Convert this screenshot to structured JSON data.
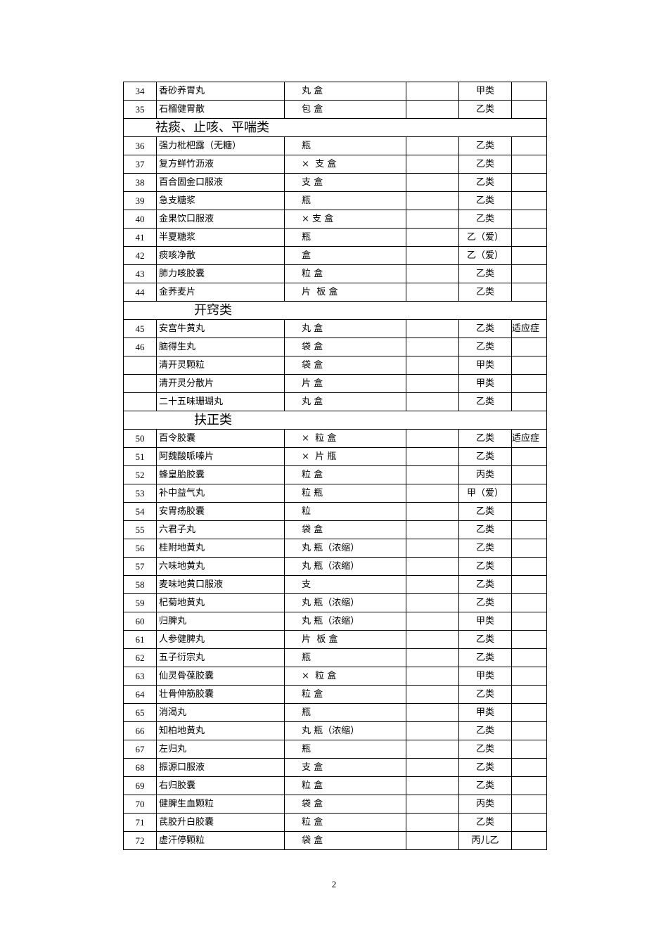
{
  "rows": [
    {
      "type": "item",
      "num": "34",
      "name": "香砂养胃丸",
      "spec": "丸 盒",
      "cat": "甲类",
      "note": ""
    },
    {
      "type": "item",
      "num": "35",
      "name": "石榴健胃散",
      "spec": "包 盒",
      "cat": "乙类",
      "note": ""
    },
    {
      "type": "section",
      "title": "祛痰、止咳、平喘类"
    },
    {
      "type": "item",
      "num": "36",
      "name": "强力枇杷露（无糖）",
      "spec": "瓶",
      "cat": "乙类",
      "note": ""
    },
    {
      "type": "item",
      "num": "37",
      "name": "复方鲜竹沥液",
      "spec": "×  支 盒",
      "cat": "乙类",
      "note": ""
    },
    {
      "type": "item",
      "num": "38",
      "name": "百合固金口服液",
      "spec": "支 盒",
      "cat": "乙类",
      "note": ""
    },
    {
      "type": "item",
      "num": "39",
      "name": "急支糖浆",
      "spec": "瓶",
      "cat": "乙类",
      "note": ""
    },
    {
      "type": "item",
      "num": "40",
      "name": "金果饮口服液",
      "spec": "× 支 盒",
      "cat": "乙类",
      "note": ""
    },
    {
      "type": "item",
      "num": "41",
      "name": "半夏糖浆",
      "spec": "瓶",
      "cat": "乙（爱）",
      "note": ""
    },
    {
      "type": "item",
      "num": "42",
      "name": "痰咳净散",
      "spec": "盒",
      "cat": "乙（爱）",
      "note": ""
    },
    {
      "type": "item",
      "num": "43",
      "name": "肺力咳胶囊",
      "spec": "粒 盒",
      "cat": "乙类",
      "note": ""
    },
    {
      "type": "item",
      "num": "44",
      "name": "金荞麦片",
      "spec": "片  板 盒",
      "cat": "乙类",
      "note": ""
    },
    {
      "type": "section",
      "title": "开窍类"
    },
    {
      "type": "item",
      "num": "45",
      "name": "安宫牛黄丸",
      "spec": "丸 盒",
      "cat": "乙类",
      "note": "适应症"
    },
    {
      "type": "item",
      "num": "46",
      "name": "脑得生丸",
      "spec": "袋 盒",
      "cat": "乙类",
      "note": ""
    },
    {
      "type": "item",
      "num": "",
      "name": "清开灵颗粒",
      "spec": "袋 盒",
      "cat": "甲类",
      "note": ""
    },
    {
      "type": "item",
      "num": "",
      "name": "清开灵分散片",
      "spec": "片 盒",
      "cat": "甲类",
      "note": ""
    },
    {
      "type": "item",
      "num": "",
      "name": "二十五味珊瑚丸",
      "spec": "丸 盒",
      "cat": "乙类",
      "note": ""
    },
    {
      "type": "section",
      "title": "扶正类"
    },
    {
      "type": "item",
      "num": "50",
      "name": "百令胶囊",
      "spec": "×  粒 盒",
      "cat": "乙类",
      "note": "适应症"
    },
    {
      "type": "item",
      "num": "51",
      "name": "阿魏酸哌嗪片",
      "spec": "×  片 瓶",
      "cat": "乙类",
      "note": ""
    },
    {
      "type": "item",
      "num": "52",
      "name": "蜂皇胎胶囊",
      "spec": "粒 盒",
      "cat": "丙类",
      "note": ""
    },
    {
      "type": "item",
      "num": "53",
      "name": "补中益气丸",
      "spec": "粒 瓶",
      "cat": "甲（爱）",
      "note": ""
    },
    {
      "type": "item",
      "num": "54",
      "name": "安胃疡胶囊",
      "spec": "粒",
      "cat": "乙类",
      "note": ""
    },
    {
      "type": "item",
      "num": "55",
      "name": "六君子丸",
      "spec": "袋 盒",
      "cat": "乙类",
      "note": ""
    },
    {
      "type": "item",
      "num": "56",
      "name": "桂附地黄丸",
      "spec": "丸 瓶（浓缩）",
      "cat": "乙类",
      "note": ""
    },
    {
      "type": "item",
      "num": "57",
      "name": "六味地黄丸",
      "spec": "丸 瓶（浓缩）",
      "cat": "乙类",
      "note": ""
    },
    {
      "type": "item",
      "num": "58",
      "name": "麦味地黄口服液",
      "spec": "支",
      "cat": "乙类",
      "note": ""
    },
    {
      "type": "item",
      "num": "59",
      "name": "杞菊地黄丸",
      "spec": "丸 瓶（浓缩）",
      "cat": "乙类",
      "note": ""
    },
    {
      "type": "item",
      "num": "60",
      "name": "归脾丸",
      "spec": "丸 瓶（浓缩）",
      "cat": "甲类",
      "note": ""
    },
    {
      "type": "item",
      "num": "61",
      "name": "人参健脾丸",
      "spec": "片  板 盒",
      "cat": "乙类",
      "note": ""
    },
    {
      "type": "item",
      "num": "62",
      "name": "五子衍宗丸",
      "spec": "瓶",
      "cat": "乙类",
      "note": ""
    },
    {
      "type": "item",
      "num": "63",
      "name": "仙灵骨葆胶囊",
      "spec": "×  粒 盒",
      "cat": "甲类",
      "note": ""
    },
    {
      "type": "item",
      "num": "64",
      "name": "壮骨伸筋胶囊",
      "spec": "粒 盒",
      "cat": "乙类",
      "note": ""
    },
    {
      "type": "item",
      "num": "65",
      "name": "消渴丸",
      "spec": "瓶",
      "cat": "甲类",
      "note": ""
    },
    {
      "type": "item",
      "num": "66",
      "name": "知柏地黄丸",
      "spec": "丸 瓶（浓缩）",
      "cat": "乙类",
      "note": ""
    },
    {
      "type": "item",
      "num": "67",
      "name": "左归丸",
      "spec": "瓶",
      "cat": "乙类",
      "note": ""
    },
    {
      "type": "item",
      "num": "68",
      "name": "振源口服液",
      "spec": "支 盒",
      "cat": "乙类",
      "note": ""
    },
    {
      "type": "item",
      "num": "69",
      "name": "右归胶囊",
      "spec": "粒 盒",
      "cat": "乙类",
      "note": ""
    },
    {
      "type": "item",
      "num": "70",
      "name": "健脾生血颗粒",
      "spec": "袋 盒",
      "cat": "丙类",
      "note": ""
    },
    {
      "type": "item",
      "num": "71",
      "name": "芪胶升白胶囊",
      "spec": "粒 盒",
      "cat": "乙类",
      "note": ""
    },
    {
      "type": "item",
      "num": "72",
      "name": "虚汗停颗粒",
      "spec": "袋 盒",
      "cat": "丙儿乙",
      "note": ""
    }
  ],
  "page_number": "2"
}
